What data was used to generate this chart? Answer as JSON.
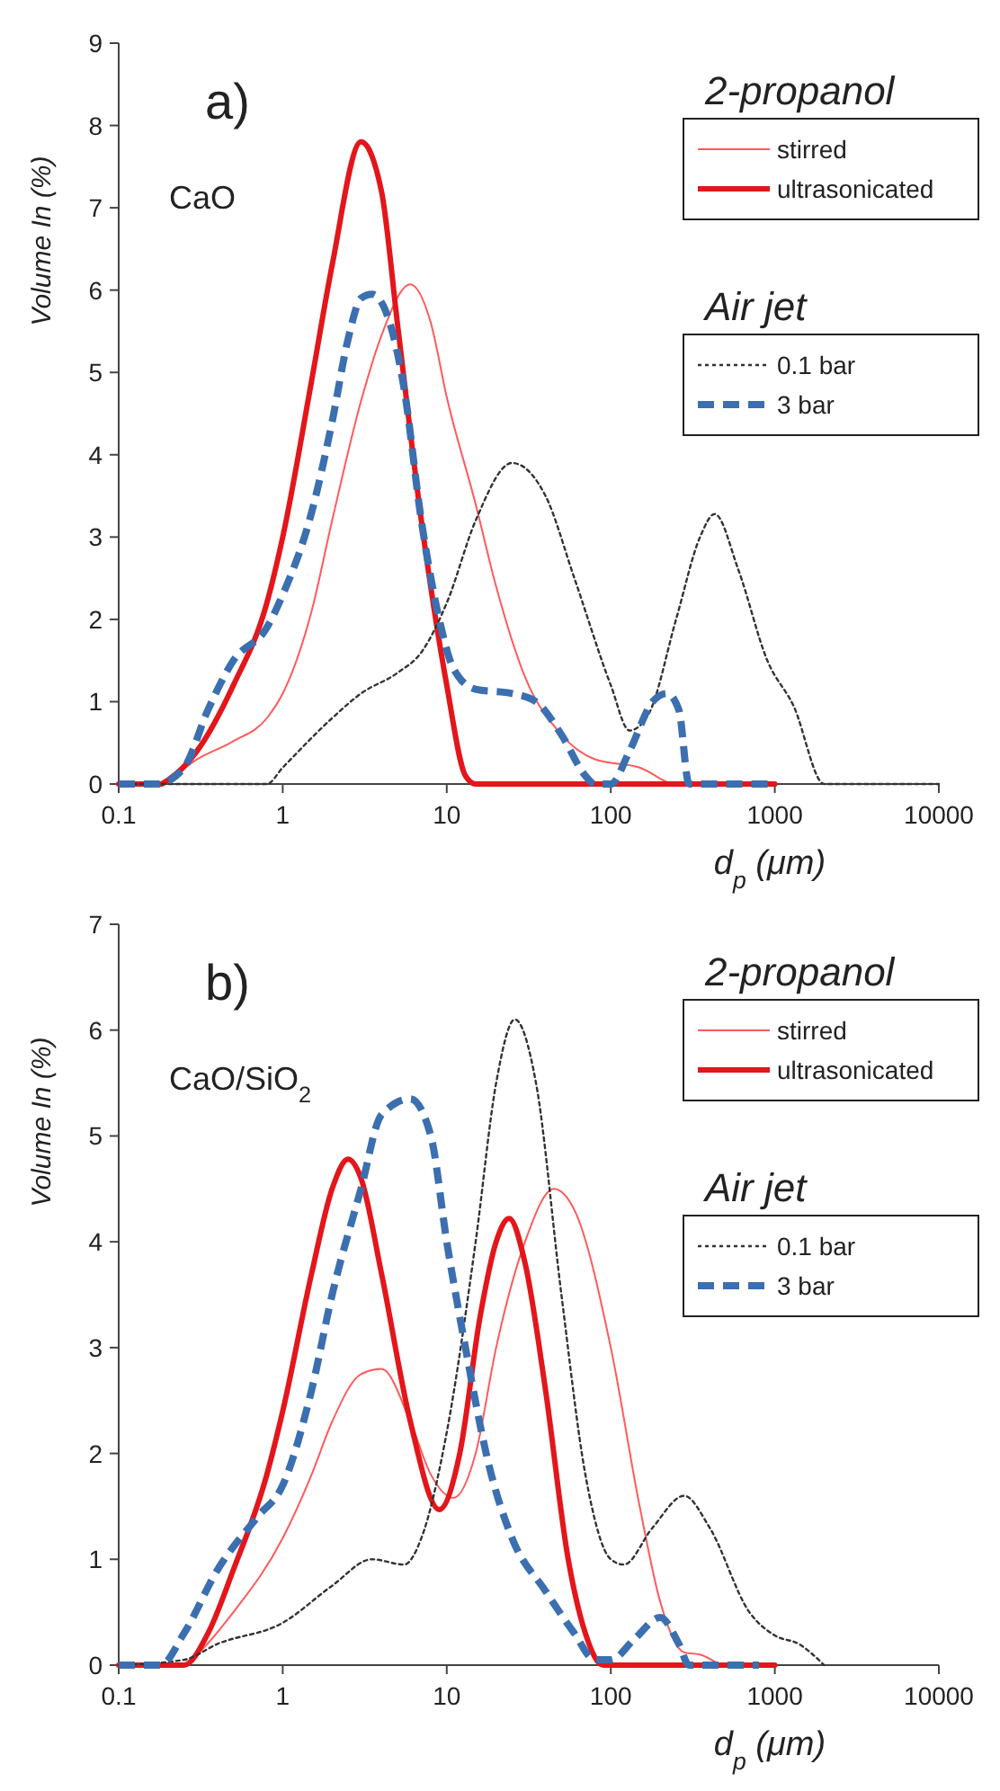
{
  "chart_data": [
    {
      "type": "line",
      "log": "x",
      "xlim": [
        0.1,
        10000
      ],
      "xticks": [
        0.1,
        1,
        10,
        100,
        1000,
        10000
      ],
      "ylim": [
        0,
        9
      ],
      "yticks": [
        0,
        1,
        2,
        3,
        4,
        5,
        6,
        7,
        8,
        9
      ],
      "xlabel": "d$_{p}$ (μm)",
      "ylabel": "Volume In (%)",
      "legend": "right",
      "legend_title": "2-propanol",
      "annotations": [
        "a)",
        "CaO",
        "Air jet"
      ],
      "series": [
        {
          "name": "stirred",
          "color": "#ff5a5a",
          "line_style": "solid",
          "x": [
            0.1,
            0.18,
            0.2,
            0.3,
            0.5,
            0.8,
            1,
            1.5,
            2,
            3,
            4,
            6,
            8,
            10,
            15,
            20,
            30,
            50,
            80,
            150,
            250,
            1000
          ],
          "values": [
            0,
            0,
            0.05,
            0.3,
            0.52,
            0.8,
            1.1,
            2.1,
            3.2,
            4.65,
            5.45,
            6.07,
            5.6,
            4.7,
            3.4,
            2.4,
            1.3,
            0.6,
            0.3,
            0.2,
            0,
            0
          ]
        },
        {
          "name": "ultrasonicated",
          "color": "#e3161b",
          "line_style": "solid",
          "x": [
            0.1,
            0.18,
            0.2,
            0.3,
            0.5,
            0.8,
            1,
            1.5,
            2,
            3,
            4,
            5,
            7,
            10,
            13,
            15,
            100,
            1000
          ],
          "values": [
            0,
            0,
            0.05,
            0.4,
            1.2,
            2.2,
            3.0,
            4.9,
            6.3,
            7.8,
            7.2,
            5.6,
            3.2,
            1.2,
            0.1,
            0,
            0,
            0
          ]
        },
        {
          "name": "0.1 bar",
          "color": "#333333",
          "line_style": "dotted",
          "x": [
            0.1,
            0.8,
            1,
            2,
            3,
            5,
            7,
            10,
            15,
            25,
            40,
            60,
            100,
            130,
            170,
            250,
            350,
            430,
            600,
            900,
            1300,
            2000,
            10000
          ],
          "values": [
            0,
            0,
            0.2,
            0.8,
            1.1,
            1.35,
            1.6,
            2.2,
            3.2,
            3.9,
            3.5,
            2.5,
            1.2,
            0.65,
            0.85,
            2.0,
            3.0,
            3.28,
            2.6,
            1.5,
            0.95,
            0,
            0
          ]
        },
        {
          "name": "3 bar",
          "color": "#3b6fb0",
          "line_style": "dashed",
          "x": [
            0.1,
            0.17,
            0.25,
            0.35,
            0.5,
            0.8,
            1,
            1.5,
            2,
            2.5,
            3,
            3.5,
            4.5,
            5.5,
            7,
            9,
            11,
            15,
            25,
            35,
            50,
            70,
            80,
            100,
            130,
            180,
            220,
            260,
            300,
            1000
          ],
          "values": [
            0,
            0,
            0.2,
            0.9,
            1.5,
            1.9,
            2.3,
            3.3,
            4.4,
            5.4,
            5.9,
            5.95,
            5.6,
            4.8,
            3.2,
            2.0,
            1.4,
            1.15,
            1.1,
            1.0,
            0.6,
            0.1,
            0,
            0,
            0.4,
            1.0,
            1.1,
            0.9,
            0,
            0
          ]
        }
      ]
    },
    {
      "type": "line",
      "log": "x",
      "xlim": [
        0.1,
        10000
      ],
      "xticks": [
        0.1,
        1,
        10,
        100,
        1000,
        10000
      ],
      "ylim": [
        0,
        7
      ],
      "yticks": [
        0,
        1,
        2,
        3,
        4,
        5,
        6,
        7
      ],
      "xlabel": "d$_{p}$ (μm)",
      "ylabel": "Volume In (%)",
      "legend": "right",
      "legend_title": "2-propanol",
      "annotations": [
        "b)",
        "CaO/SiO$_{2}$",
        "Air jet"
      ],
      "series": [
        {
          "name": "stirred",
          "color": "#ff5a5a",
          "line_style": "solid",
          "x": [
            0.1,
            0.25,
            0.3,
            0.5,
            1,
            1.5,
            2,
            3,
            4,
            6,
            8,
            11,
            15,
            20,
            30,
            45,
            60,
            100,
            150,
            200,
            280,
            350,
            500,
            1000
          ],
          "values": [
            0,
            0,
            0.1,
            0.5,
            1.2,
            1.8,
            2.3,
            2.75,
            2.8,
            2.3,
            1.8,
            1.58,
            2.0,
            3.0,
            4.0,
            4.5,
            4.3,
            3.0,
            1.5,
            0.6,
            0.12,
            0.1,
            0,
            0
          ]
        },
        {
          "name": "ultrasonicated",
          "color": "#e3161b",
          "line_style": "solid",
          "x": [
            0.1,
            0.25,
            0.35,
            0.5,
            0.8,
            1,
            1.5,
            2,
            2.5,
            3,
            4,
            6,
            9,
            12,
            16,
            20,
            24,
            30,
            40,
            55,
            70,
            90,
            1000
          ],
          "values": [
            0,
            0,
            0.3,
            0.9,
            1.8,
            2.4,
            3.7,
            4.5,
            4.78,
            4.6,
            3.7,
            2.3,
            1.47,
            2.0,
            3.3,
            4.0,
            4.22,
            3.8,
            2.6,
            1.0,
            0.3,
            0,
            0
          ]
        },
        {
          "name": "0.1 bar",
          "color": "#333333",
          "line_style": "dotted",
          "x": [
            0.1,
            0.25,
            0.4,
            1,
            2,
            3.5,
            5.5,
            7,
            10,
            15,
            20,
            26,
            35,
            50,
            70,
            100,
            120,
            180,
            280,
            400,
            700,
            1000,
            1400,
            2000
          ],
          "values": [
            0,
            0.05,
            0.2,
            0.4,
            0.75,
            1.0,
            0.95,
            1.2,
            2.2,
            4.0,
            5.5,
            6.1,
            5.5,
            3.5,
            1.8,
            1.0,
            0.95,
            1.3,
            1.6,
            1.3,
            0.5,
            0.28,
            0.2,
            0
          ]
        },
        {
          "name": "3 bar",
          "color": "#3b6fb0",
          "line_style": "dashed",
          "x": [
            0.1,
            0.18,
            0.25,
            0.4,
            0.7,
            1,
            1.5,
            2,
            3,
            4,
            6,
            8,
            10,
            13,
            18,
            25,
            40,
            60,
            80,
            100,
            140,
            200,
            260,
            300,
            800
          ],
          "values": [
            0,
            0,
            0.3,
            0.9,
            1.4,
            1.7,
            2.6,
            3.5,
            4.5,
            5.2,
            5.35,
            5.0,
            4.0,
            3.0,
            1.9,
            1.2,
            0.7,
            0.3,
            0.05,
            0.05,
            0.25,
            0.45,
            0.2,
            0,
            0
          ]
        }
      ]
    }
  ]
}
